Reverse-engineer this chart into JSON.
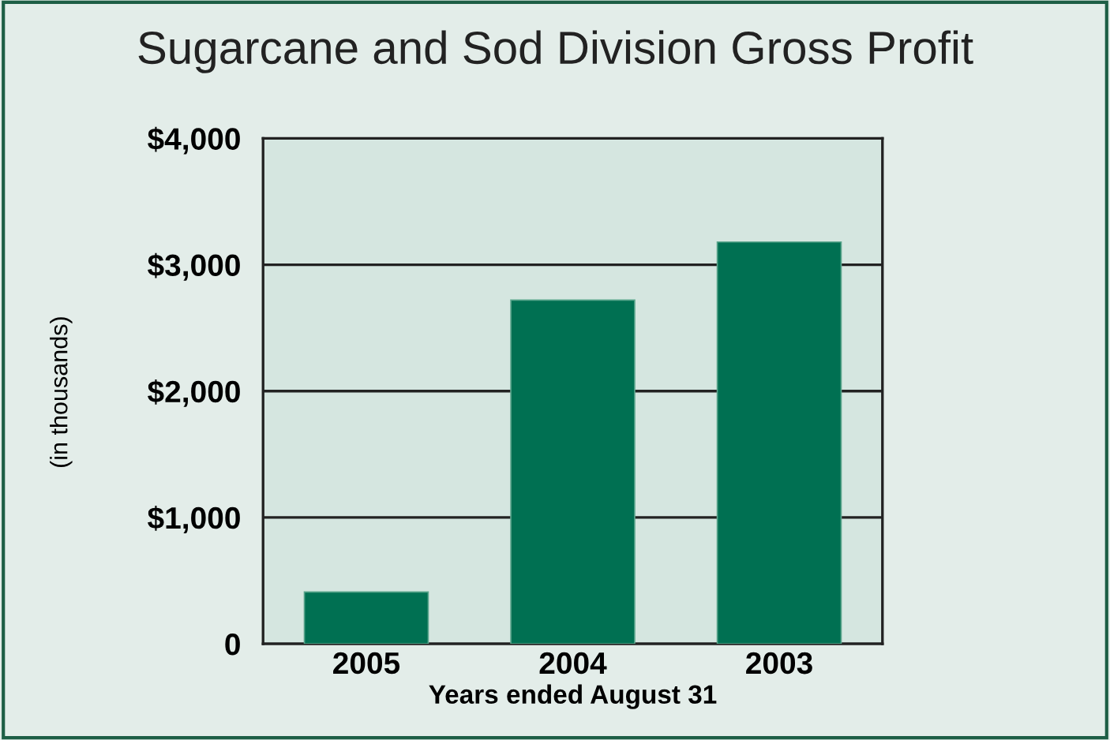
{
  "chart_data": {
    "type": "bar",
    "title": "Sugarcane and Sod Division Gross Profit",
    "xlabel": "Years ended August 31",
    "ylabel": "(in thousands)",
    "categories": [
      "2005",
      "2004",
      "2003"
    ],
    "values": [
      410,
      2720,
      3180
    ],
    "color": "#007052",
    "ylim": [
      0,
      4000
    ],
    "yticks": [
      {
        "value": 0,
        "label": "0"
      },
      {
        "value": 1000,
        "label": "$1,000"
      },
      {
        "value": 2000,
        "label": "$2,000"
      },
      {
        "value": 3000,
        "label": "$3,000"
      },
      {
        "value": 4000,
        "label": "$4,000"
      }
    ],
    "grid": "y",
    "legend": false
  }
}
